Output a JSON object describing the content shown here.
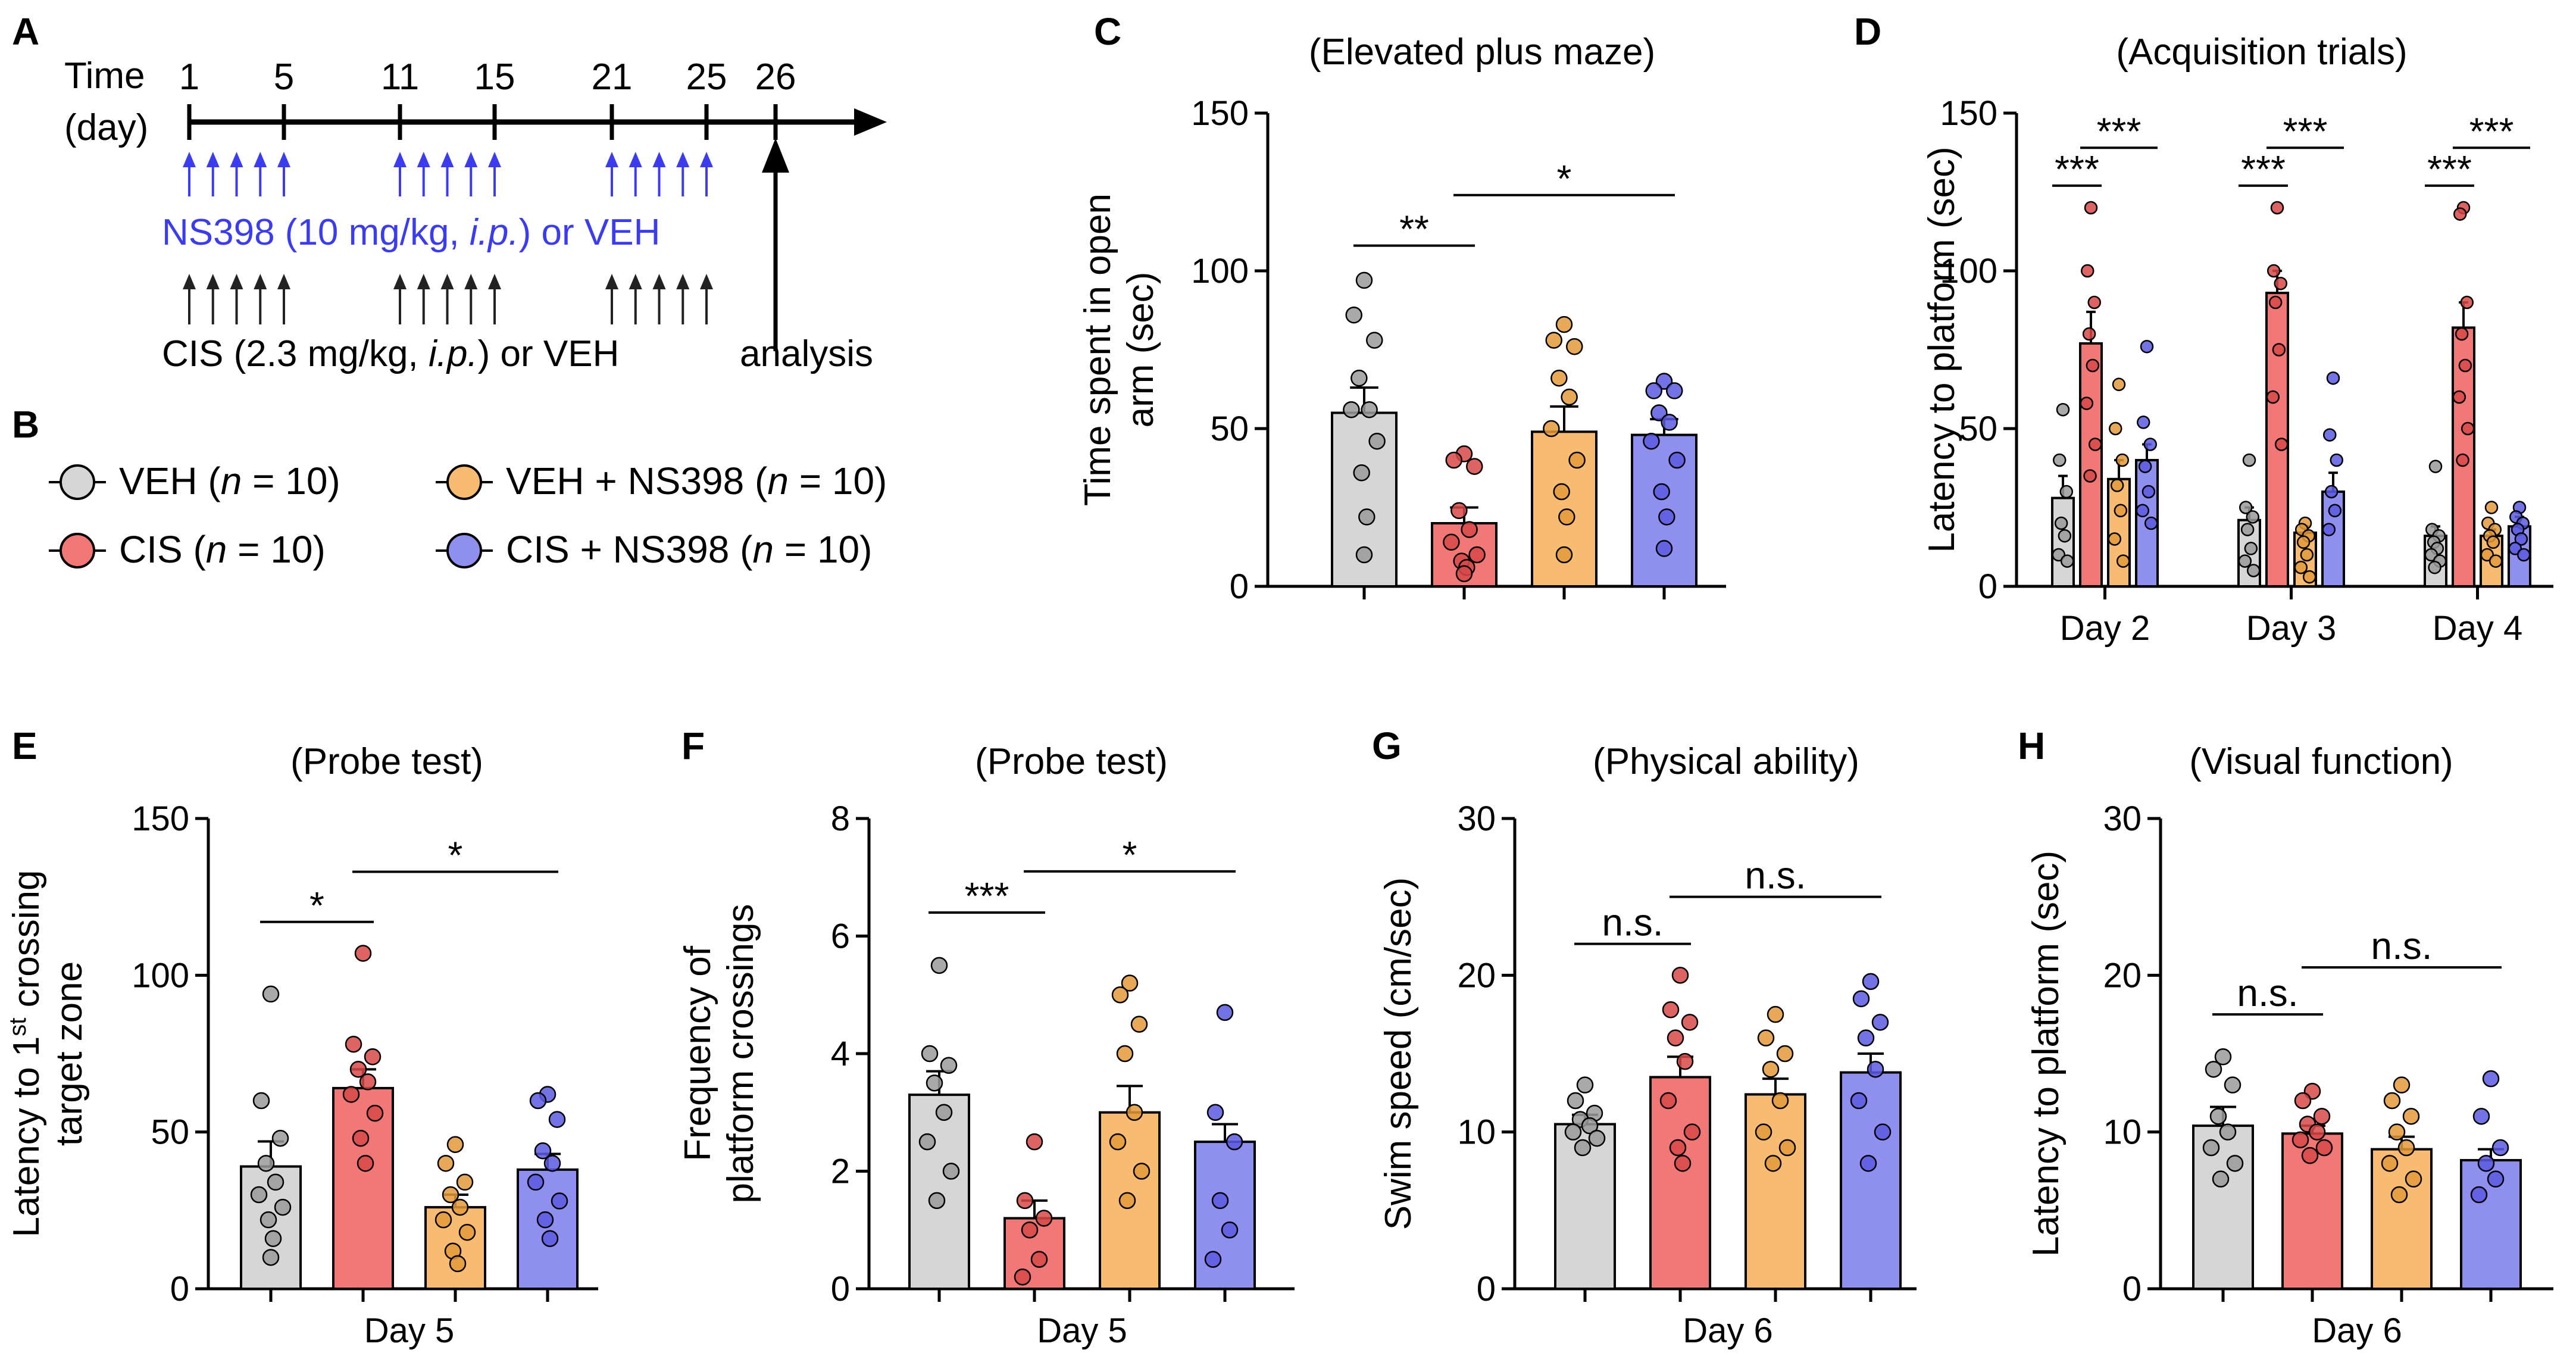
{
  "colors": {
    "VEH": "#d6d6d6",
    "CIS": "#f27777",
    "VEH_NS398": "#f7bb72",
    "CIS_NS398": "#8f8fef",
    "VEH_dot": "#9a9a9a",
    "CIS_dot": "#d84848",
    "VEH_NS398_dot": "#e39a3a",
    "CIS_NS398_dot": "#5a5ae0",
    "timeline_blue": "#3b3bf0"
  },
  "panelA": {
    "label": "A",
    "time_label": "Time",
    "day_label": "(day)",
    "days": [
      "1",
      "5",
      "11",
      "15",
      "21",
      "25",
      "26"
    ],
    "ns398_text_prefix": "NS398 (10 mg/kg, ",
    "ns398_text_ip": "i.p.",
    "ns398_text_suffix": ") or VEH",
    "cis_text_prefix": "CIS (2.3 mg/kg, ",
    "cis_text_ip": "i.p.",
    "cis_text_suffix": ") or VEH",
    "analysis": "analysis"
  },
  "panelB": {
    "label": "B",
    "legend": [
      {
        "name": "VEH",
        "n_label": "n",
        "n_value": " = 10)"
      },
      {
        "name": "CIS",
        "n_label": "n",
        "n_value": " = 10)"
      },
      {
        "name": "VEH + NS398",
        "n_label": "n",
        "n_value": " = 10)"
      },
      {
        "name": "CIS + NS398",
        "n_label": "n",
        "n_value": " = 10)"
      }
    ]
  },
  "chart_data": [
    {
      "id": "C",
      "type": "bar",
      "title": "(Elevated plus maze)",
      "ylabel_lines": [
        "Time spent in open",
        "arm (sec)"
      ],
      "xlabel": "",
      "ylim": [
        0,
        150
      ],
      "yticks": [
        0,
        50,
        100,
        150
      ],
      "categories": [
        "VEH",
        "CIS",
        "VEH + NS398",
        "CIS + NS398"
      ],
      "values": [
        55,
        20,
        49,
        48
      ],
      "errors": [
        8,
        5,
        8,
        5
      ],
      "points": [
        [
          97,
          86,
          78,
          66,
          56,
          56,
          46,
          36,
          22,
          10
        ],
        [
          42,
          40,
          38,
          24,
          18,
          14,
          10,
          8,
          6,
          4
        ],
        [
          83,
          78,
          76,
          66,
          60,
          50,
          40,
          30,
          22,
          10
        ],
        [
          65,
          62,
          62,
          55,
          52,
          46,
          40,
          30,
          22,
          12
        ]
      ],
      "significance": [
        {
          "label": "**",
          "from": 0,
          "to": 1,
          "y": 108
        },
        {
          "label": "*",
          "from": 1,
          "to": 3,
          "y": 124
        }
      ]
    },
    {
      "id": "D",
      "type": "bar",
      "title": "(Acquisition trials)",
      "ylabel_lines": [
        "Latency to platform (sec)"
      ],
      "ylim": [
        0,
        150
      ],
      "yticks": [
        0,
        50,
        100,
        150
      ],
      "categories": [
        "Day 2",
        "Day 3",
        "Day 4"
      ],
      "series": [
        {
          "name": "VEH",
          "values": [
            28,
            21,
            16
          ],
          "errors": [
            7,
            4,
            3
          ]
        },
        {
          "name": "CIS",
          "values": [
            77,
            93,
            82
          ],
          "errors": [
            10,
            7,
            8
          ]
        },
        {
          "name": "VEH + NS398",
          "values": [
            34,
            17,
            16
          ],
          "errors": [
            6,
            2,
            2
          ]
        },
        {
          "name": "CIS + NS398",
          "values": [
            40,
            30,
            19
          ],
          "errors": [
            5,
            6,
            3
          ]
        }
      ],
      "points": [
        [
          [
            56,
            40,
            30,
            20,
            16,
            10,
            8
          ],
          [
            120,
            100,
            90,
            80,
            70,
            58,
            45,
            35
          ],
          [
            64,
            50,
            40,
            32,
            24,
            15,
            8
          ],
          [
            76,
            52,
            45,
            38,
            30,
            24,
            20
          ]
        ],
        [
          [
            40,
            25,
            22,
            18,
            12,
            8,
            5
          ],
          [
            120,
            100,
            96,
            90,
            75,
            60,
            45
          ],
          [
            20,
            18,
            16,
            14,
            10,
            6,
            3
          ],
          [
            66,
            48,
            40,
            30,
            24,
            18
          ]
        ],
        [
          [
            38,
            18,
            16,
            14,
            12,
            10,
            8,
            6
          ],
          [
            120,
            118,
            90,
            80,
            70,
            60,
            50,
            40
          ],
          [
            25,
            20,
            18,
            16,
            14,
            10,
            8
          ],
          [
            25,
            22,
            20,
            18,
            15,
            12,
            10
          ]
        ]
      ],
      "significance": [
        {
          "label": "***",
          "group": 0,
          "from": 0,
          "to": 1,
          "y": 127
        },
        {
          "label": "***",
          "group": 0,
          "from": 1,
          "to": 3,
          "y": 139
        },
        {
          "label": "***",
          "group": 1,
          "from": 0,
          "to": 1,
          "y": 127
        },
        {
          "label": "***",
          "group": 1,
          "from": 1,
          "to": 3,
          "y": 139
        },
        {
          "label": "***",
          "group": 2,
          "from": 0,
          "to": 1,
          "y": 127
        },
        {
          "label": "***",
          "group": 2,
          "from": 1,
          "to": 3,
          "y": 139
        }
      ]
    },
    {
      "id": "E",
      "type": "bar",
      "title": "(Probe test)",
      "ylabel_lines": [
        "Latency to 1st crossing",
        "target zone"
      ],
      "xlabel": "Day 5",
      "ylim": [
        0,
        150
      ],
      "yticks": [
        0,
        50,
        100,
        150
      ],
      "categories": [
        "VEH",
        "CIS",
        "VEH + NS398",
        "CIS + NS398"
      ],
      "values": [
        39,
        64,
        26,
        38
      ],
      "errors": [
        8,
        6,
        4,
        5
      ],
      "points": [
        [
          94,
          60,
          48,
          40,
          34,
          30,
          26,
          22,
          16,
          10
        ],
        [
          107,
          78,
          74,
          70,
          66,
          62,
          56,
          48,
          40
        ],
        [
          46,
          40,
          34,
          30,
          26,
          22,
          18,
          12,
          8
        ],
        [
          62,
          60,
          54,
          44,
          40,
          34,
          28,
          22,
          16
        ]
      ],
      "significance": [
        {
          "label": "*",
          "from": 0,
          "to": 1,
          "y": 117
        },
        {
          "label": "*",
          "from": 1,
          "to": 3,
          "y": 133
        }
      ]
    },
    {
      "id": "F",
      "type": "bar",
      "title": "(Probe test)",
      "ylabel_lines": [
        "Frequency of",
        "platform crossings"
      ],
      "xlabel": "Day 5",
      "ylim": [
        0,
        8
      ],
      "yticks": [
        0,
        2,
        4,
        6,
        8
      ],
      "categories": [
        "VEH",
        "CIS",
        "VEH + NS398",
        "CIS + NS398"
      ],
      "values": [
        3.3,
        1.2,
        3.0,
        2.5
      ],
      "errors": [
        0.4,
        0.3,
        0.45,
        0.3
      ],
      "points": [
        [
          5.5,
          4.0,
          3.8,
          3.5,
          3.0,
          2.5,
          2.0,
          1.5
        ],
        [
          2.5,
          1.5,
          1.2,
          1.0,
          0.5,
          0.2
        ],
        [
          5.2,
          5.0,
          4.5,
          4.0,
          3.0,
          2.5,
          2.0,
          1.5
        ],
        [
          4.7,
          3.0,
          2.5,
          1.5,
          1.0,
          0.5
        ]
      ],
      "significance": [
        {
          "label": "***",
          "from": 0,
          "to": 1,
          "y": 6.4
        },
        {
          "label": "*",
          "from": 1,
          "to": 3,
          "y": 7.1
        }
      ]
    },
    {
      "id": "G",
      "type": "bar",
      "title": "(Physical ability)",
      "ylabel_lines": [
        "Swim speed (cm/sec)"
      ],
      "xlabel": "Day 6",
      "ylim": [
        0,
        30
      ],
      "yticks": [
        0,
        10,
        20,
        30
      ],
      "categories": [
        "VEH",
        "CIS",
        "VEH + NS398",
        "CIS + NS398"
      ],
      "values": [
        10.5,
        13.5,
        12.4,
        13.8
      ],
      "errors": [
        0.6,
        1.3,
        1.0,
        1.2
      ],
      "points": [
        [
          13.0,
          12.0,
          11.2,
          10.8,
          10.4,
          10.0,
          9.6,
          9.0
        ],
        [
          20.0,
          17.8,
          17.0,
          16.0,
          14.5,
          12.0,
          10.0,
          9.0,
          8.0
        ],
        [
          17.5,
          16.0,
          15.0,
          14.0,
          12.0,
          10.0,
          9.0,
          8.0
        ],
        [
          19.6,
          18.5,
          17.0,
          16.0,
          14.0,
          12.0,
          10.0,
          8.0
        ]
      ],
      "significance": [
        {
          "label": "n.s.",
          "from": 0,
          "to": 1,
          "y": 22
        },
        {
          "label": "n.s.",
          "from": 1,
          "to": 3,
          "y": 25
        }
      ]
    },
    {
      "id": "H",
      "type": "bar",
      "title": "(Visual function)",
      "ylabel_lines": [
        "Latency to platform (sec)"
      ],
      "xlabel": "Day 6",
      "ylim": [
        0,
        30
      ],
      "yticks": [
        0,
        10,
        20,
        30
      ],
      "categories": [
        "VEH",
        "CIS",
        "VEH + NS398",
        "CIS + NS398"
      ],
      "values": [
        10.4,
        9.9,
        8.9,
        8.2
      ],
      "errors": [
        1.2,
        0.5,
        0.8,
        0.7
      ],
      "points": [
        [
          14.8,
          14.0,
          13.0,
          11.0,
          10.0,
          9.0,
          8.0,
          7.0
        ],
        [
          12.6,
          12.0,
          11.0,
          10.5,
          10.0,
          9.5,
          9.0,
          8.5
        ],
        [
          13.0,
          12.0,
          11.0,
          10.0,
          9.0,
          8.0,
          7.0,
          6.0
        ],
        [
          13.4,
          11.0,
          9.0,
          8.0,
          7.0,
          6.0
        ]
      ],
      "significance": [
        {
          "label": "n.s.",
          "from": 0,
          "to": 1,
          "y": 17.5
        },
        {
          "label": "n.s.",
          "from": 1,
          "to": 3,
          "y": 20.5
        }
      ]
    }
  ]
}
